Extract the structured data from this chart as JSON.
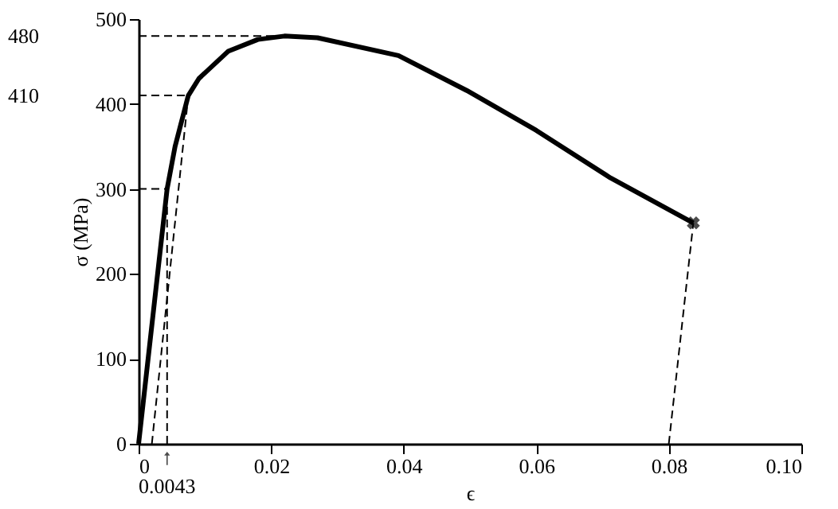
{
  "chart_data": {
    "type": "line",
    "xlabel": "ϵ",
    "ylabel": "σ (MPa)",
    "xlim": [
      0,
      0.1
    ],
    "xticks": [
      0,
      0.02,
      0.04,
      0.06,
      0.08,
      {
        "value": 0.1,
        "label": "0.10"
      }
    ],
    "ylim": [
      0,
      500
    ],
    "yticks": [
      0,
      100,
      200,
      300,
      400,
      500
    ],
    "y2lim": [
      0,
      500
    ],
    "y2ticks": [
      410,
      480
    ],
    "grid": false,
    "series": [
      {
        "type": "line",
        "line_style": "solid",
        "color": "#000000",
        "x": [
          0,
          0.0043,
          0.0055,
          0.0075,
          0.0091,
          0.0135,
          0.018,
          0.022,
          0.027,
          0.0392,
          0.0495,
          0.06,
          0.0712,
          0.0837
        ],
        "values": [
          0,
          300,
          350,
          410,
          430,
          462,
          476,
          480,
          478,
          457,
          416,
          369,
          313,
          260
        ]
      },
      {
        "type": "line",
        "line_style": "dashed",
        "color": "#000000",
        "x": [
          0.002,
          0.0075
        ],
        "values": [
          0,
          410
        ]
      },
      {
        "type": "line",
        "line_style": "dashed",
        "color": "#000000",
        "x": [
          0.0043,
          0.0043
        ],
        "values": [
          0,
          300
        ]
      },
      {
        "type": "line",
        "line_style": "dashed",
        "color": "#000000",
        "x": [
          0,
          0.0043
        ],
        "values": [
          300,
          300
        ]
      },
      {
        "type": "line",
        "axis": "y2",
        "line_style": "dashed",
        "color": "#000000",
        "x": [
          0,
          0.0075
        ],
        "values": [
          410,
          410
        ]
      },
      {
        "type": "line",
        "axis": "y2",
        "line_style": "dashed",
        "color": "#000000",
        "x": [
          0,
          0.022
        ],
        "values": [
          480,
          480
        ]
      },
      {
        "type": "line",
        "line_style": "dashed",
        "color": "#000000",
        "x": [
          0.08,
          0.0837
        ],
        "values": [
          0,
          260
        ]
      },
      {
        "type": "scatter",
        "marker": "cross",
        "color": "#000000",
        "x": [
          0.0837
        ],
        "values": [
          260
        ]
      }
    ],
    "annotations": [
      {
        "text": "0.0043",
        "x": 0.0043,
        "y": 0
      }
    ]
  }
}
